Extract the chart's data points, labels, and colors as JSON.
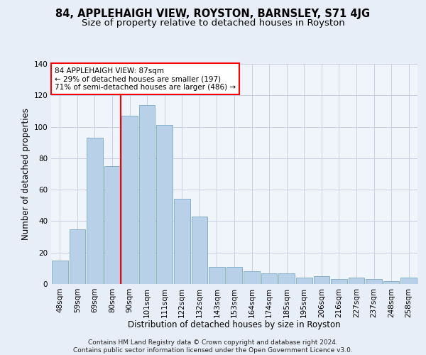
{
  "title": "84, APPLEHAIGH VIEW, ROYSTON, BARNSLEY, S71 4JG",
  "subtitle": "Size of property relative to detached houses in Royston",
  "xlabel": "Distribution of detached houses by size in Royston",
  "ylabel": "Number of detached properties",
  "categories": [
    "48sqm",
    "59sqm",
    "69sqm",
    "80sqm",
    "90sqm",
    "101sqm",
    "111sqm",
    "122sqm",
    "132sqm",
    "143sqm",
    "153sqm",
    "164sqm",
    "174sqm",
    "185sqm",
    "195sqm",
    "206sqm",
    "216sqm",
    "227sqm",
    "237sqm",
    "248sqm",
    "258sqm"
  ],
  "values": [
    15,
    35,
    93,
    75,
    107,
    114,
    101,
    54,
    43,
    11,
    11,
    8,
    7,
    7,
    4,
    5,
    3,
    4,
    3,
    2,
    4
  ],
  "bar_color": "#b8d0e8",
  "bar_edge_color": "#7aaac8",
  "vline_x": 3.5,
  "vline_color": "red",
  "annotation_line1": "84 APPLEHAIGH VIEW: 87sqm",
  "annotation_line2": "← 29% of detached houses are smaller (197)",
  "annotation_line3": "71% of semi-detached houses are larger (486) →",
  "annotation_box_color": "white",
  "annotation_box_edge": "red",
  "ylim": [
    0,
    140
  ],
  "yticks": [
    0,
    20,
    40,
    60,
    80,
    100,
    120,
    140
  ],
  "footer": "Contains HM Land Registry data © Crown copyright and database right 2024.\nContains public sector information licensed under the Open Government Licence v3.0.",
  "bg_color": "#e8eef8",
  "plot_bg_color": "#f0f4fb",
  "grid_color": "#c8d0e0",
  "title_fontsize": 10.5,
  "subtitle_fontsize": 9.5,
  "xlabel_fontsize": 8.5,
  "ylabel_fontsize": 8.5,
  "footer_fontsize": 6.5,
  "tick_fontsize": 7.5,
  "annot_fontsize": 7.5
}
